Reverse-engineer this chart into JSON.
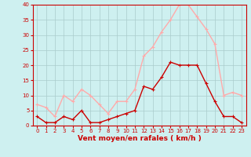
{
  "x": [
    0,
    1,
    2,
    3,
    4,
    5,
    6,
    7,
    8,
    9,
    10,
    11,
    12,
    13,
    14,
    15,
    16,
    17,
    18,
    19,
    20,
    21,
    22,
    23
  ],
  "wind_avg": [
    3,
    1,
    1,
    3,
    2,
    5,
    1,
    1,
    2,
    3,
    4,
    5,
    13,
    12,
    16,
    21,
    20,
    20,
    20,
    14,
    8,
    3,
    3,
    1
  ],
  "wind_gust": [
    7,
    6,
    3,
    10,
    8,
    12,
    10,
    7,
    4,
    8,
    8,
    12,
    23,
    26,
    31,
    35,
    40,
    40,
    36,
    32,
    27,
    10,
    11,
    10
  ],
  "ylim": [
    0,
    40
  ],
  "xlim": [
    -0.5,
    23.5
  ],
  "yticks": [
    0,
    5,
    10,
    15,
    20,
    25,
    30,
    35,
    40
  ],
  "xticks": [
    0,
    1,
    2,
    3,
    4,
    5,
    6,
    7,
    8,
    9,
    10,
    11,
    12,
    13,
    14,
    15,
    16,
    17,
    18,
    19,
    20,
    21,
    22,
    23
  ],
  "xlabel": "Vent moyen/en rafales ( km/h )",
  "color_avg": "#cc0000",
  "color_gust": "#ffaaaa",
  "bg_color": "#cef0f0",
  "grid_color": "#aacccc",
  "xlabel_color": "#cc0000",
  "tick_color": "#cc0000",
  "marker_avg": "P",
  "marker_gust": "P",
  "marker_size": 2.5,
  "line_width": 1.0
}
